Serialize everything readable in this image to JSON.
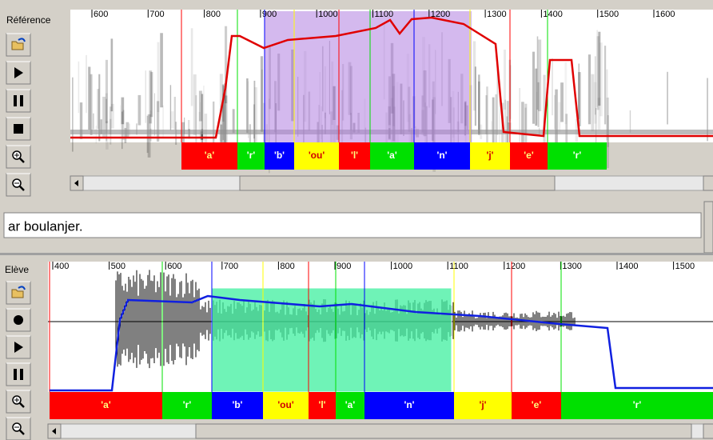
{
  "reference": {
    "label": "Référence",
    "ticks": [
      600,
      700,
      800,
      900,
      1000,
      1100,
      1200,
      1300,
      1400,
      1500,
      1600
    ],
    "segments": [
      "'a'",
      "'r'",
      "'b'",
      "'ou'",
      "'l'",
      "'a'",
      "'n'",
      "'j'",
      "'e'",
      "'r'"
    ]
  },
  "text_input": "ar boulanjer.",
  "student": {
    "label": "Elève",
    "ticks": [
      400,
      500,
      600,
      700,
      800,
      900,
      1000,
      1100,
      1200,
      1300,
      1400,
      1500
    ],
    "segments": [
      "'a'",
      "'r'",
      "'b'",
      "'ou'",
      "'l'",
      "'a'",
      "'n'",
      "'j'",
      "'e'",
      "'r'"
    ]
  }
}
